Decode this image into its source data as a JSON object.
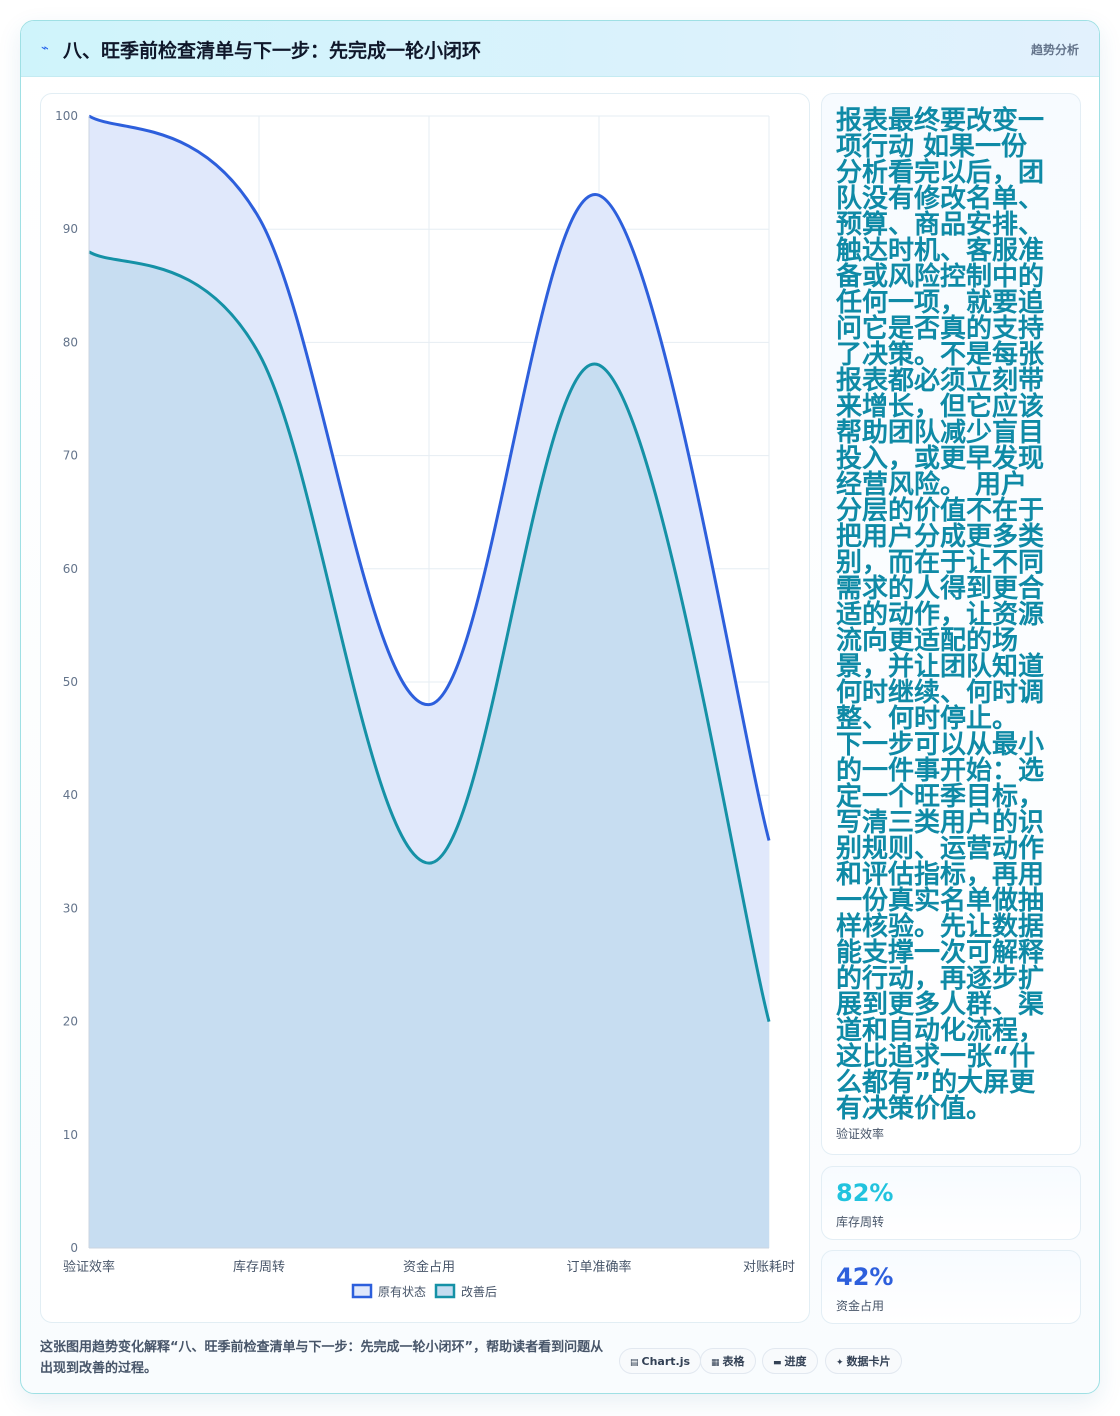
{
  "header": {
    "icon": "pulse-icon",
    "title": "八、旺季前检查清单与下一步：先完成一轮小闭环",
    "tag": "趋势分析"
  },
  "chart_data": {
    "type": "area",
    "categories": [
      "验证效率",
      "库存周转",
      "资金占用",
      "订单准确率",
      "对账耗时"
    ],
    "series": [
      {
        "name": "原有状态",
        "values": [
          100,
          91,
          48,
          93,
          36
        ],
        "color": "#2d5fdc",
        "fill": "#e0e8fb"
      },
      {
        "name": "改善后",
        "values": [
          88,
          79,
          34,
          78,
          20
        ],
        "color": "#1591a6",
        "fill": "#c5dcf0"
      }
    ],
    "ylim": [
      0,
      100
    ],
    "yticks": [
      0,
      10,
      20,
      30,
      40,
      50,
      60,
      70,
      80,
      90,
      100
    ],
    "legend": "bottom",
    "grid": true
  },
  "side": {
    "body": "报表最终要改变一项行动 如果一份分析看完以后，团队没有修改名单、预算、商品安排、触达时机、客服准备或风险控制中的任何一项，就要追问它是否真的支持了决策。不是每张报表都必须立刻带来增长，但它应该帮助团队减少盲目投入，或更早发现经营风险。 用户分层的价值不在于把用户分成更多类别，而在于让不同需求的人得到更合适的动作，让资源流向更适配的场景，并让团队知道何时继续、何时调整、何时停止。 下一步可以从最小的一件事开始：选定一个旺季目标，写清三类用户的识别规则、运营动作和评估指标，再用一份真实名单做抽样核验。先让数据能支撑一次可解释的行动，再逐步扩展到更多人群、渠道和自动化流程，这比追求一张“什么都有”的大屏更有决策价值。",
    "caption": "验证效率"
  },
  "stats": [
    {
      "value": "82%",
      "label": "库存周转",
      "color": "#22c3de"
    },
    {
      "value": "42%",
      "label": "资金占用",
      "color": "#2d5fdc"
    }
  ],
  "footer": {
    "description": "这张图用趋势变化解释“八、旺季前检查清单与下一步：先完成一轮小闭环”，帮助读者看到问题从出现到改善的过程。",
    "pills": [
      {
        "icon": "chart-icon",
        "glyph": "▤",
        "label": "Chart.js"
      },
      {
        "icon": "table-icon",
        "glyph": "▦",
        "label": "表格"
      },
      {
        "icon": "progress-icon",
        "glyph": "▬",
        "label": "进度"
      },
      {
        "icon": "sparkle-icon",
        "glyph": "✦",
        "label": "数据卡片"
      }
    ]
  }
}
